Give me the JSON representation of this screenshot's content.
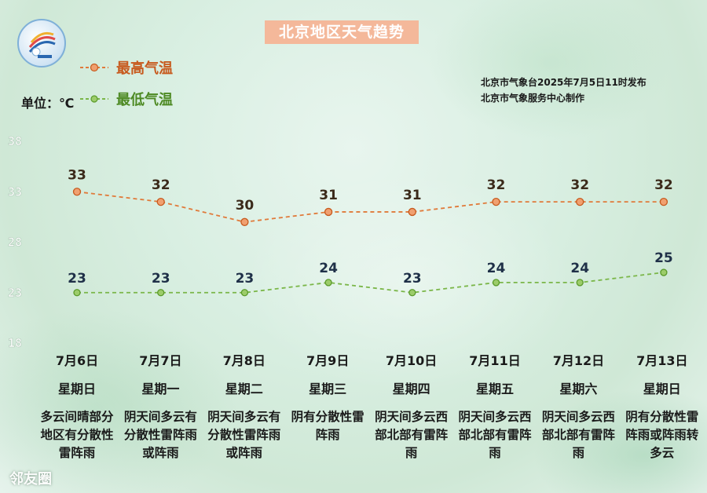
{
  "title": "北京地区天气趋势",
  "legend": {
    "high": "最高气温",
    "low": "最低气温"
  },
  "unit_label": "单位：℃",
  "issuer": {
    "line1": "北京市气象台2025年7月5日11时发布",
    "line2": "北京市气象服务中心制作"
  },
  "colors": {
    "high_line": "#e07a3a",
    "high_marker": "#f0a070",
    "low_line": "#7ab648",
    "low_marker": "#9ccc6a",
    "title_bg": "#f4b89a"
  },
  "chart_data": {
    "type": "line",
    "categories": [
      "7月6日",
      "7月7日",
      "7月8日",
      "7月9日",
      "7月10日",
      "7月11日",
      "7月12日",
      "7月13日"
    ],
    "series": [
      {
        "name": "最高气温",
        "values": [
          33,
          32,
          30,
          31,
          31,
          32,
          32,
          32
        ]
      },
      {
        "name": "最低气温",
        "values": [
          23,
          23,
          23,
          24,
          23,
          24,
          24,
          25
        ]
      }
    ],
    "y_ticks": [
      "38",
      "33",
      "28",
      "23",
      "18"
    ],
    "ylim": [
      18,
      38
    ],
    "legend_position": "top-left"
  },
  "days": [
    {
      "date": "7月6日",
      "week": "星期日",
      "desc": "多云间晴部分地区有分散性雷阵雨"
    },
    {
      "date": "7月7日",
      "week": "星期一",
      "desc": "阴天间多云有分散性雷阵雨或阵雨"
    },
    {
      "date": "7月8日",
      "week": "星期二",
      "desc": "阴天间多云有分散性雷阵雨或阵雨"
    },
    {
      "date": "7月9日",
      "week": "星期三",
      "desc": "阴有分散性雷阵雨"
    },
    {
      "date": "7月10日",
      "week": "星期四",
      "desc": "阴天间多云西部北部有雷阵雨"
    },
    {
      "date": "7月11日",
      "week": "星期五",
      "desc": "阴天间多云西部北部有雷阵雨"
    },
    {
      "date": "7月12日",
      "week": "星期六",
      "desc": "阴天间多云西部北部有雷阵雨"
    },
    {
      "date": "7月13日",
      "week": "星期日",
      "desc": "阴有分散性雷阵雨或阵雨转多云"
    }
  ],
  "watermark": "邻友圈",
  "icons": {
    "logo": "meteorological-service-logo"
  }
}
